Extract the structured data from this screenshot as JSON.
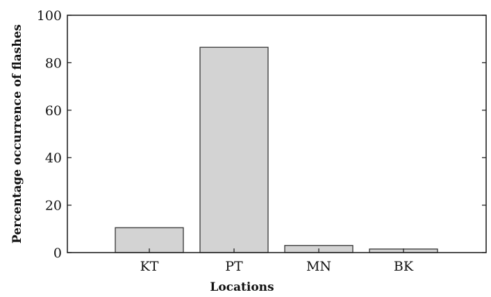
{
  "chart_data": {
    "type": "bar",
    "title": "",
    "xlabel": "Locations",
    "ylabel": "Percentage occurrence of flashes",
    "categories": [
      "KT",
      "PT",
      "MN",
      "BK"
    ],
    "values": [
      10.5,
      86.5,
      3,
      1.5
    ],
    "ylim": [
      0,
      100
    ],
    "yticks": [
      "0",
      "20",
      "40",
      "60",
      "80",
      "100"
    ],
    "grid": false,
    "bar_color": "#d3d3d3",
    "bar_edge_color": "#333333"
  }
}
